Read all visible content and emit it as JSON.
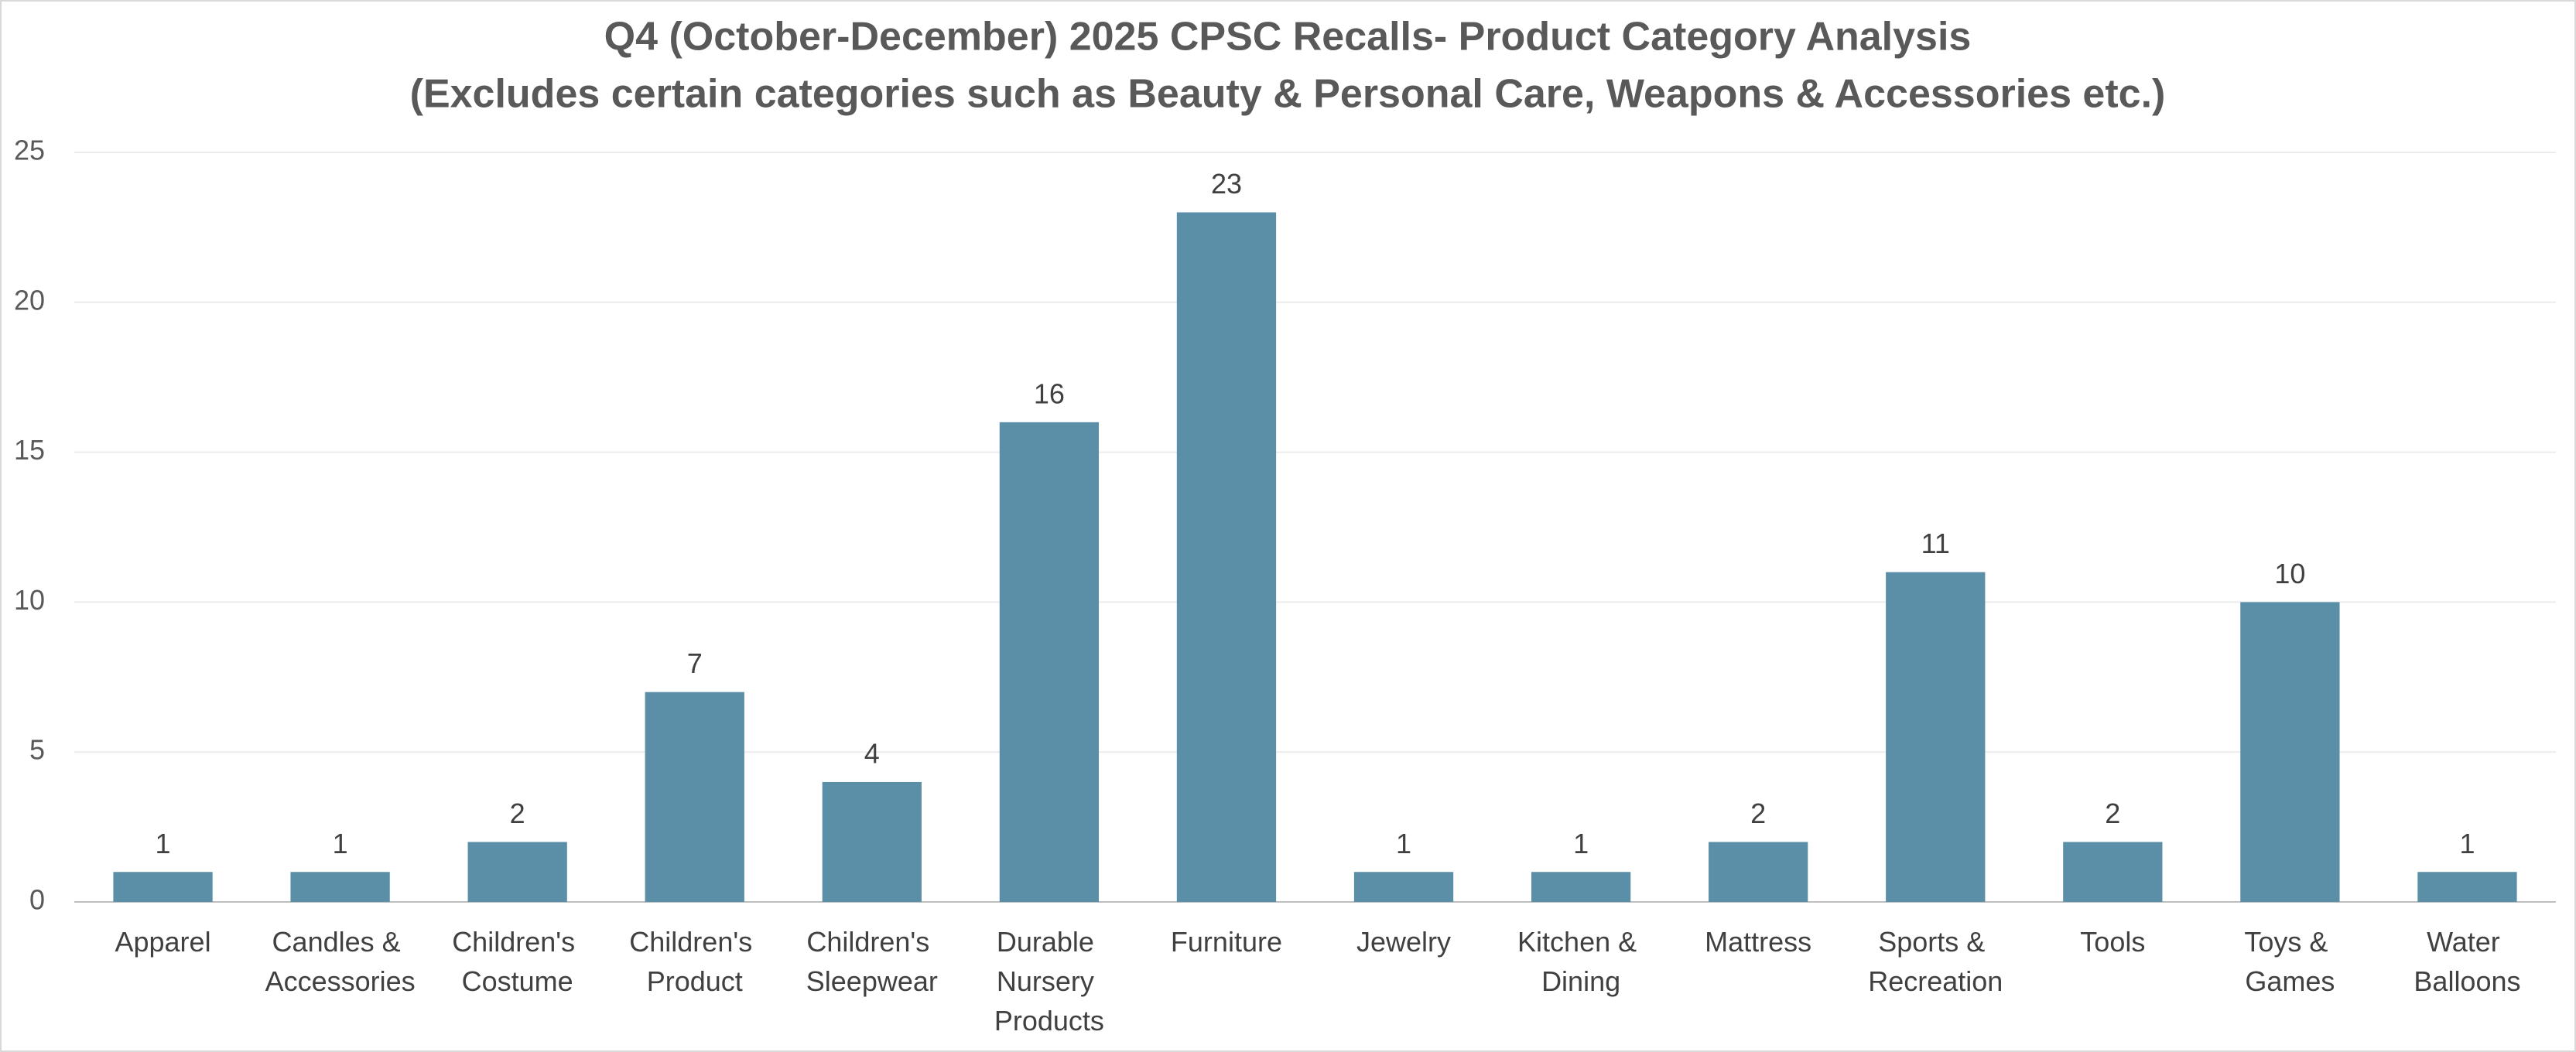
{
  "chart_data": {
    "type": "bar",
    "title": "Q4 (October-December) 2025 CPSC Recalls- Product Category Analysis",
    "subtitle": "(Excludes certain categories such as Beauty & Personal Care, Weapons & Accessories etc.)",
    "categories": [
      "Apparel",
      "Candles & Accessories",
      "Children's Costume",
      "Children's Product",
      "Children's Sleepwear",
      "Durable Nursery Products",
      "Furniture",
      "Jewelry",
      "Kitchen & Dining",
      "Mattress",
      "Sports & Recreation",
      "Tools",
      "Toys & Games",
      "Water Balloons"
    ],
    "values": [
      1,
      1,
      2,
      7,
      4,
      16,
      23,
      1,
      1,
      2,
      11,
      2,
      10,
      1
    ],
    "color": "#5b8fa8",
    "ylim": [
      0,
      25
    ],
    "yticks": [
      0,
      5,
      10,
      15,
      20,
      25
    ],
    "grid": true
  }
}
